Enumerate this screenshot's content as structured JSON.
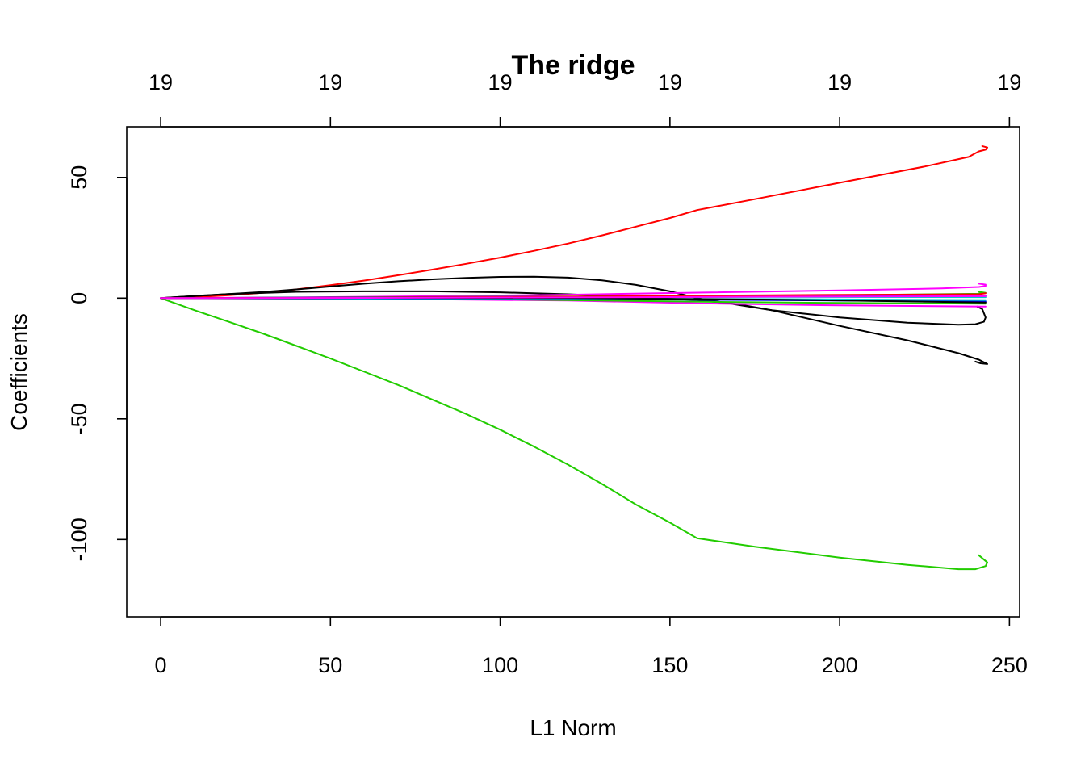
{
  "chart_data": {
    "type": "line",
    "title": "The ridge",
    "xlabel": "L1 Norm",
    "ylabel": "Coefficients",
    "xlim": [
      -10,
      253
    ],
    "ylim": [
      -132,
      71
    ],
    "x_ticks": [
      0,
      50,
      100,
      150,
      200,
      250
    ],
    "y_ticks": [
      -100,
      -50,
      0,
      50
    ],
    "top_axis": {
      "ticks": [
        0,
        50,
        100,
        150,
        200,
        250
      ],
      "labels": [
        "19",
        "19",
        "19",
        "19",
        "19",
        "19"
      ]
    },
    "grid": false,
    "legend": "none",
    "series": [
      {
        "color": "#FF0000",
        "points": [
          [
            0,
            0
          ],
          [
            10,
            0.4
          ],
          [
            20,
            1.2
          ],
          [
            30,
            2.2
          ],
          [
            40,
            3.6
          ],
          [
            50,
            5.4
          ],
          [
            60,
            7.3
          ],
          [
            70,
            9.5
          ],
          [
            80,
            11.8
          ],
          [
            90,
            14.2
          ],
          [
            100,
            16.8
          ],
          [
            110,
            19.6
          ],
          [
            120,
            22.6
          ],
          [
            130,
            26
          ],
          [
            140,
            29.6
          ],
          [
            150,
            33.2
          ],
          [
            158,
            36.5
          ],
          [
            175,
            41
          ],
          [
            200,
            47.8
          ],
          [
            225,
            54.5
          ],
          [
            238,
            58.5
          ],
          [
            241,
            60.8
          ],
          [
            243,
            61.5
          ],
          [
            243.5,
            62.4
          ],
          [
            242,
            63
          ]
        ]
      },
      {
        "color": "#22CC00",
        "points": [
          [
            0,
            0
          ],
          [
            10,
            -5
          ],
          [
            20,
            -9.8
          ],
          [
            30,
            -14.6
          ],
          [
            40,
            -19.8
          ],
          [
            50,
            -25
          ],
          [
            60,
            -30.5
          ],
          [
            70,
            -36
          ],
          [
            80,
            -42
          ],
          [
            90,
            -48
          ],
          [
            100,
            -54.5
          ],
          [
            110,
            -61.5
          ],
          [
            120,
            -69
          ],
          [
            130,
            -77
          ],
          [
            140,
            -85.5
          ],
          [
            150,
            -93
          ],
          [
            158,
            -99.5
          ],
          [
            175,
            -103
          ],
          [
            200,
            -107.5
          ],
          [
            220,
            -110.5
          ],
          [
            235,
            -112.3
          ],
          [
            240,
            -112.3
          ],
          [
            243,
            -111
          ],
          [
            243.5,
            -109.5
          ],
          [
            241,
            -106.5
          ]
        ]
      },
      {
        "color": "#000000",
        "points": [
          [
            0,
            0
          ],
          [
            10,
            0.9
          ],
          [
            20,
            1.7
          ],
          [
            30,
            2.5
          ],
          [
            40,
            3.6
          ],
          [
            50,
            4.8
          ],
          [
            60,
            6
          ],
          [
            70,
            7
          ],
          [
            80,
            7.8
          ],
          [
            90,
            8.4
          ],
          [
            100,
            8.8
          ],
          [
            110,
            8.9
          ],
          [
            120,
            8.5
          ],
          [
            130,
            7.4
          ],
          [
            140,
            5.5
          ],
          [
            150,
            2.8
          ],
          [
            158,
            0
          ],
          [
            170,
            -2.8
          ],
          [
            180,
            -5
          ],
          [
            200,
            -8
          ],
          [
            220,
            -10.2
          ],
          [
            235,
            -11
          ],
          [
            240,
            -10.8
          ],
          [
            242.5,
            -9.8
          ],
          [
            243,
            -8
          ],
          [
            242,
            -4.5
          ],
          [
            240.5,
            -3.5
          ]
        ]
      },
      {
        "color": "#000000",
        "points": [
          [
            0,
            0
          ],
          [
            20,
            1.7
          ],
          [
            40,
            2.6
          ],
          [
            60,
            2.8
          ],
          [
            80,
            2.8
          ],
          [
            100,
            2.4
          ],
          [
            120,
            1.6
          ],
          [
            140,
            0.4
          ],
          [
            158,
            -0.8
          ],
          [
            170,
            -2.5
          ],
          [
            180,
            -5
          ],
          [
            200,
            -11.5
          ],
          [
            220,
            -17.5
          ],
          [
            235,
            -22.8
          ],
          [
            241,
            -25.5
          ],
          [
            243.5,
            -27.3
          ],
          [
            241.5,
            -27
          ],
          [
            240,
            -26.3
          ]
        ]
      },
      {
        "color": "#FF00FF",
        "points": [
          [
            0,
            0
          ],
          [
            40,
            0.3
          ],
          [
            80,
            0.8
          ],
          [
            120,
            1.4
          ],
          [
            160,
            2.3
          ],
          [
            200,
            3.2
          ],
          [
            230,
            4
          ],
          [
            241,
            4.6
          ],
          [
            243,
            5
          ],
          [
            243,
            5.6
          ],
          [
            241,
            6
          ]
        ]
      },
      {
        "color": "#FF00FF",
        "points": [
          [
            0,
            0
          ],
          [
            40,
            -0.2
          ],
          [
            80,
            -0.5
          ],
          [
            120,
            -1
          ],
          [
            160,
            -2.2
          ],
          [
            200,
            -3
          ],
          [
            243,
            -3.5
          ]
        ]
      },
      {
        "color": "#22CC00",
        "points": [
          [
            0,
            0
          ],
          [
            50,
            0.3
          ],
          [
            100,
            0.6
          ],
          [
            160,
            0.8
          ],
          [
            200,
            1.2
          ],
          [
            241,
            1.8
          ],
          [
            243,
            2.2
          ],
          [
            241,
            2.6
          ]
        ]
      },
      {
        "color": "#22CC00",
        "points": [
          [
            0,
            0
          ],
          [
            50,
            -0.2
          ],
          [
            100,
            -0.5
          ],
          [
            160,
            -1.5
          ],
          [
            200,
            -2
          ],
          [
            243,
            -2.3
          ]
        ]
      },
      {
        "color": "#0000FF",
        "points": [
          [
            0,
            0
          ],
          [
            60,
            0.3
          ],
          [
            120,
            0.6
          ],
          [
            180,
            0.8
          ],
          [
            243,
            0.9
          ]
        ]
      },
      {
        "color": "#0000FF",
        "points": [
          [
            0,
            0
          ],
          [
            60,
            -0.2
          ],
          [
            120,
            -0.4
          ],
          [
            180,
            -0.8
          ],
          [
            243,
            -1.4
          ]
        ]
      },
      {
        "color": "#00CCCC",
        "points": [
          [
            0,
            0
          ],
          [
            60,
            0.2
          ],
          [
            120,
            0.4
          ],
          [
            180,
            0.5
          ],
          [
            243,
            0.4
          ]
        ]
      },
      {
        "color": "#00CCCC",
        "points": [
          [
            0,
            0
          ],
          [
            60,
            -0.1
          ],
          [
            120,
            -0.2
          ],
          [
            180,
            -0.4
          ],
          [
            243,
            -0.8
          ]
        ]
      },
      {
        "color": "#000000",
        "points": [
          [
            0,
            0
          ],
          [
            60,
            0.1
          ],
          [
            120,
            0
          ],
          [
            180,
            -0.6
          ],
          [
            243,
            -1.8
          ]
        ]
      },
      {
        "color": "#FF0000",
        "points": [
          [
            0,
            0
          ],
          [
            60,
            0.2
          ],
          [
            120,
            0.6
          ],
          [
            180,
            1.2
          ],
          [
            241,
            1.6
          ],
          [
            243,
            2
          ]
        ]
      },
      {
        "color": "#FF00FF",
        "points": [
          [
            0,
            0
          ],
          [
            60,
            0.1
          ],
          [
            120,
            0.3
          ],
          [
            180,
            0.6
          ],
          [
            243,
            0.8
          ]
        ]
      }
    ]
  }
}
